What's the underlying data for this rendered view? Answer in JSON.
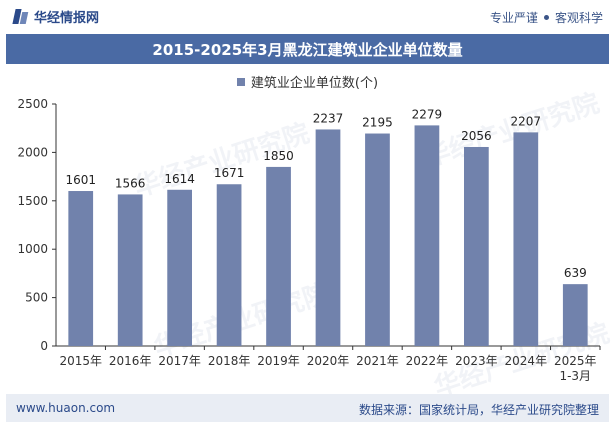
{
  "header": {
    "brand": "华经情报网",
    "tagline_left": "专业严谨",
    "tagline_right": "客观科学"
  },
  "watermark": {
    "text": "华经产业研究院"
  },
  "footer": {
    "website": "www.huaon.com",
    "source": "数据来源：国家统计局，华经产业研究院整理"
  },
  "colors": {
    "bar": "#7182ac",
    "title_bg": "#4a6aa4",
    "footer_bg": "#e9edf4"
  },
  "chart_data": {
    "type": "bar",
    "title": "2015-2025年3月黑龙江建筑业企业单位数量",
    "categories": [
      "2015年",
      "2016年",
      "2017年",
      "2018年",
      "2019年",
      "2020年",
      "2021年",
      "2022年",
      "2023年",
      "2024年",
      "2025年\n1-3月"
    ],
    "series": [
      {
        "name": "建筑业企业单位数(个)",
        "values": [
          1601,
          1566,
          1614,
          1671,
          1850,
          2237,
          2195,
          2279,
          2056,
          2207,
          639
        ]
      }
    ],
    "ylim": [
      0,
      2500
    ],
    "yticks": [
      0,
      500,
      1000,
      1500,
      2000,
      2500
    ],
    "legend": "top-center",
    "grid": false
  }
}
